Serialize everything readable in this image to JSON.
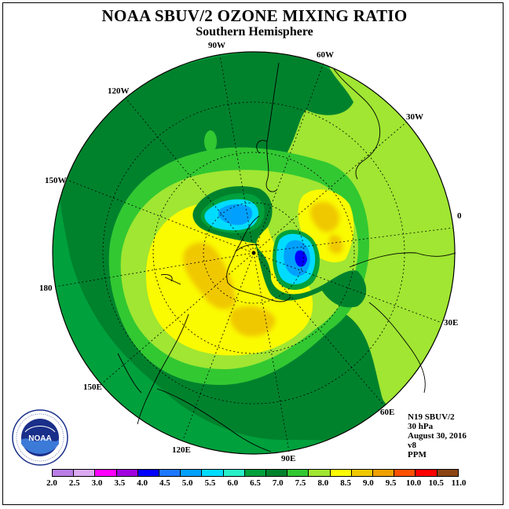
{
  "title": "NOAA SBUV/2 OZONE MIXING RATIO",
  "subtitle": "Southern Hemisphere",
  "longitude_labels": [
    "90W",
    "60W",
    "30W",
    "0",
    "30E",
    "60E",
    "90E",
    "120E",
    "150E",
    "180",
    "150W",
    "120W"
  ],
  "info": {
    "satellite": "N19 SBUV/2",
    "level": "30 hPa",
    "date": "August 30, 2016",
    "version": "v8",
    "units": "PPM"
  },
  "colorbar": {
    "labels": [
      "2.0",
      "2.5",
      "3.0",
      "3.5",
      "4.0",
      "4.5",
      "5.0",
      "5.5",
      "6.0",
      "6.5",
      "7.0",
      "7.5",
      "8.0",
      "8.5",
      "9.0",
      "9.5",
      "10.0",
      "10.5",
      "11.0"
    ],
    "colors": [
      "#b87ee6",
      "#dcaaf0",
      "#ff00ff",
      "#a000e0",
      "#0000ff",
      "#1e78ff",
      "#00a0ff",
      "#00dcff",
      "#28f0c8",
      "#00a03c",
      "#00822d",
      "#32c832",
      "#a0e632",
      "#fafa00",
      "#f0c800",
      "#f0a000",
      "#ff5000",
      "#ff0000",
      "#8b4513"
    ]
  },
  "logo": {
    "text": "NOAA",
    "ring_text": "NATIONAL OCEANIC AND ATMOSPHERIC ADMINISTRATION · U.S. DEPARTMENT OF COMMERCE"
  }
}
